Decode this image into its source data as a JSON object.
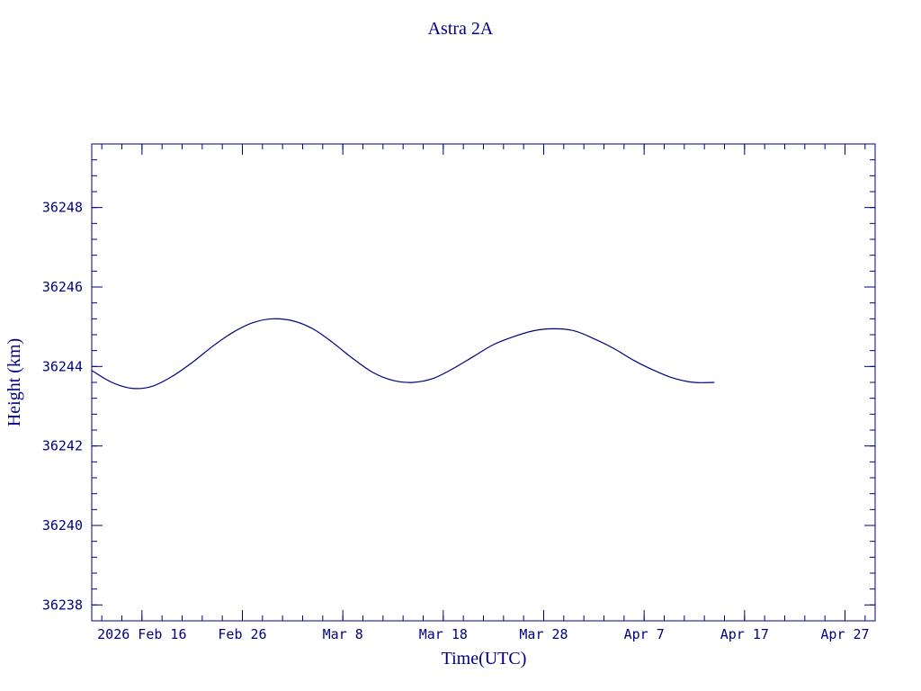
{
  "colors": {
    "ink": "#000080",
    "background": "#ffffff"
  },
  "chart_data": {
    "type": "line",
    "title": "Astra 2A",
    "xlabel": "Time(UTC)",
    "ylabel": "Height (km)",
    "xlim": [
      "2026-02-11",
      "2026-04-30"
    ],
    "ylim": [
      36237.6,
      36249.6
    ],
    "grid": false,
    "x_ticks": [
      "2026-02-16",
      "2026-02-26",
      "2026-03-08",
      "2026-03-18",
      "2026-03-28",
      "2026-04-07",
      "2026-04-17",
      "2026-04-27"
    ],
    "x_tick_labels": [
      "2026 Feb 16",
      "Feb 26",
      "Mar  8",
      "Mar 18",
      "Mar 28",
      "Apr  7",
      "Apr 17",
      "Apr 27"
    ],
    "y_ticks": [
      36238,
      36240,
      36242,
      36244,
      36246,
      36248
    ],
    "y_tick_labels": [
      "36238",
      "36240",
      "36242",
      "36244",
      "36246",
      "36248"
    ],
    "series": [
      {
        "x": [
          "2026-02-11",
          "2026-02-13",
          "2026-02-15",
          "2026-02-17",
          "2026-02-19",
          "2026-02-21",
          "2026-02-23",
          "2026-02-25",
          "2026-02-27",
          "2026-03-01",
          "2026-03-03",
          "2026-03-05",
          "2026-03-07",
          "2026-03-09",
          "2026-03-11",
          "2026-03-13",
          "2026-03-15",
          "2026-03-17",
          "2026-03-19",
          "2026-03-21",
          "2026-03-23",
          "2026-03-25",
          "2026-03-27",
          "2026-03-29",
          "2026-03-31",
          "2026-04-02",
          "2026-04-04",
          "2026-04-06",
          "2026-04-08",
          "2026-04-10",
          "2026-04-12",
          "2026-04-14"
        ],
        "y": [
          36243.9,
          36243.6,
          36243.45,
          36243.5,
          36243.75,
          36244.1,
          36244.5,
          36244.85,
          36245.1,
          36245.2,
          36245.15,
          36244.95,
          36244.6,
          36244.2,
          36243.85,
          36243.65,
          36243.6,
          36243.7,
          36243.95,
          36244.25,
          36244.55,
          36244.75,
          36244.9,
          36244.95,
          36244.9,
          36244.7,
          36244.45,
          36244.15,
          36243.9,
          36243.7,
          36243.6,
          36243.6
        ]
      }
    ]
  }
}
